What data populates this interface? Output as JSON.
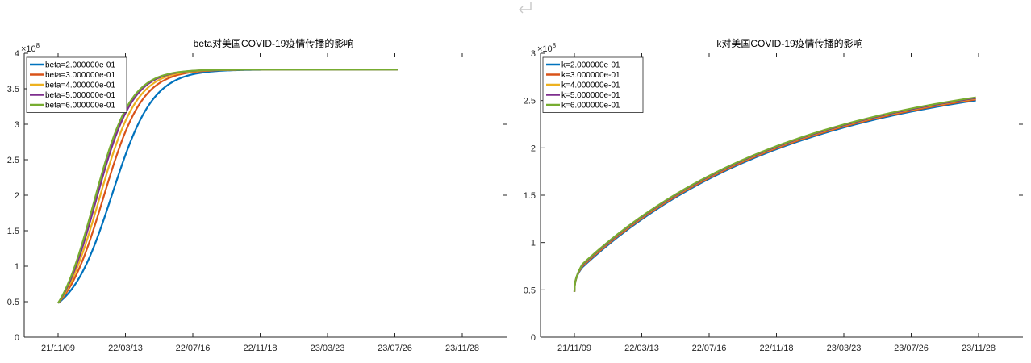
{
  "chart_data": [
    {
      "type": "line",
      "title": "beta对美国COVID-19疫情传播的影响",
      "exponent_label": "×10",
      "exponent_power": "8",
      "x_ticks": [
        "21/11/09",
        "22/03/13",
        "22/07/16",
        "22/11/18",
        "23/03/23",
        "23/07/26",
        "23/11/28"
      ],
      "y_ticks": [
        "0",
        "0.5",
        "1",
        "1.5",
        "2",
        "2.5",
        "3",
        "3.5",
        "4"
      ],
      "ylim": [
        0,
        4
      ],
      "x_range_days": [
        -90,
        750
      ],
      "legend_position": "top-left",
      "series": [
        {
          "name": "beta=2.000000e-01",
          "color": "#0072BD",
          "shape": {
            "type": "logistic",
            "start": 0.48,
            "end": 3.77,
            "t_mid": 100,
            "width": 38,
            "t_end": 630
          }
        },
        {
          "name": "beta=3.000000e-01",
          "color": "#D95319",
          "shape": {
            "type": "logistic",
            "start": 0.48,
            "end": 3.77,
            "t_mid": 84,
            "width": 36,
            "t_end": 630
          }
        },
        {
          "name": "beta=4.000000e-01",
          "color": "#EDB120",
          "shape": {
            "type": "logistic",
            "start": 0.48,
            "end": 3.77,
            "t_mid": 76,
            "width": 35,
            "t_end": 630
          }
        },
        {
          "name": "beta=5.000000e-01",
          "color": "#7E2F8E",
          "shape": {
            "type": "logistic",
            "start": 0.48,
            "end": 3.77,
            "t_mid": 70,
            "width": 34,
            "t_end": 630
          }
        },
        {
          "name": "beta=6.000000e-01",
          "color": "#77AC30",
          "shape": {
            "type": "logistic",
            "start": 0.48,
            "end": 3.77,
            "t_mid": 66,
            "width": 34,
            "t_end": 630
          }
        }
      ]
    },
    {
      "type": "line",
      "title": "k对美国COVID-19疫情传播的影响",
      "exponent_label": "×10",
      "exponent_power": "8",
      "x_ticks": [
        "21/11/09",
        "22/03/13",
        "22/07/16",
        "22/11/18",
        "23/03/23",
        "23/07/26",
        "23/11/28"
      ],
      "y_ticks": [
        "0",
        "0.5",
        "1",
        "1.5",
        "2",
        "2.5",
        "3"
      ],
      "ylim": [
        0,
        3
      ],
      "x_range_days": [
        -90,
        750
      ],
      "legend_position": "top-left",
      "series": [
        {
          "name": "k=2.000000e-01",
          "color": "#0072BD",
          "shape": {
            "type": "jump-saturate",
            "start": 0.48,
            "jump": 0.76,
            "end": 2.86,
            "tau": 400,
            "t_jump": 15,
            "t_end": 745,
            "offset": -0.02
          }
        },
        {
          "name": "k=3.000000e-01",
          "color": "#D95319",
          "shape": {
            "type": "jump-saturate",
            "start": 0.48,
            "jump": 0.76,
            "end": 2.86,
            "tau": 400,
            "t_jump": 15,
            "t_end": 745,
            "offset": -0.01
          }
        },
        {
          "name": "k=4.000000e-01",
          "color": "#EDB120",
          "shape": {
            "type": "jump-saturate",
            "start": 0.48,
            "jump": 0.76,
            "end": 2.86,
            "tau": 400,
            "t_jump": 15,
            "t_end": 745,
            "offset": 0.0
          }
        },
        {
          "name": "k=5.000000e-01",
          "color": "#7E2F8E",
          "shape": {
            "type": "jump-saturate",
            "start": 0.48,
            "jump": 0.76,
            "end": 2.86,
            "tau": 400,
            "t_jump": 15,
            "t_end": 745,
            "offset": 0.005
          }
        },
        {
          "name": "k=6.000000e-01",
          "color": "#77AC30",
          "shape": {
            "type": "jump-saturate",
            "start": 0.48,
            "jump": 0.76,
            "end": 2.86,
            "tau": 400,
            "t_jump": 15,
            "t_end": 745,
            "offset": 0.012
          }
        }
      ]
    }
  ]
}
